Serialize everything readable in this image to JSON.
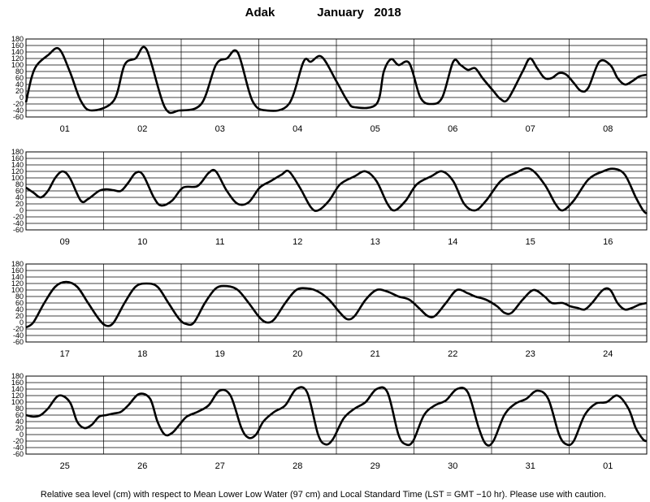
{
  "header": {
    "station": "Adak",
    "month_year": "January   2018"
  },
  "footer": {
    "note": "Relative sea level (cm) with respect to Mean Lower Low Water (97 cm) and Local Standard Time (LST = GMT −10 hr). Please use with caution."
  },
  "chart_data": {
    "type": "line",
    "title": "Adak January 2018",
    "ylim": [
      -60,
      180
    ],
    "y_ticks": [
      -60,
      -40,
      -20,
      0,
      20,
      40,
      60,
      80,
      100,
      120,
      140,
      160,
      180
    ],
    "grid": true,
    "line_color": "#000000",
    "panels": [
      {
        "days": [
          "01",
          "02",
          "03",
          "04",
          "05",
          "06",
          "07",
          "08"
        ],
        "points": [
          [
            0,
            -15
          ],
          [
            1.5,
            60
          ],
          [
            3,
            100
          ],
          [
            6,
            130
          ],
          [
            9,
            150
          ],
          [
            12,
            80
          ],
          [
            15,
            -10
          ],
          [
            18,
            -40
          ],
          [
            24,
            -10
          ],
          [
            27,
            100
          ],
          [
            30,
            120
          ],
          [
            33,
            148
          ],
          [
            38,
            -30
          ],
          [
            42,
            -40
          ],
          [
            48,
            -20
          ],
          [
            52,
            100
          ],
          [
            55,
            120
          ],
          [
            58,
            138
          ],
          [
            62,
            -10
          ],
          [
            66,
            -40
          ],
          [
            72,
            -20
          ],
          [
            76,
            110
          ],
          [
            78,
            110
          ],
          [
            81,
            125
          ],
          [
            85,
            50
          ],
          [
            88,
            -10
          ],
          [
            90,
            -30
          ],
          [
            96,
            -20
          ],
          [
            98,
            80
          ],
          [
            100,
            118
          ],
          [
            102,
            100
          ],
          [
            105,
            105
          ],
          [
            108,
            0
          ],
          [
            111,
            -20
          ],
          [
            114,
            0
          ],
          [
            117,
            110
          ],
          [
            119,
            100
          ],
          [
            121,
            85
          ],
          [
            123,
            90
          ],
          [
            125,
            60
          ],
          [
            128,
            20
          ],
          [
            130,
            -5
          ],
          [
            132,
            -5
          ],
          [
            136,
            80
          ],
          [
            138,
            120
          ],
          [
            140,
            90
          ],
          [
            142,
            60
          ],
          [
            144,
            60
          ],
          [
            146,
            75
          ],
          [
            148,
            70
          ],
          [
            150,
            45
          ],
          [
            152,
            20
          ],
          [
            154,
            30
          ],
          [
            157,
            110
          ],
          [
            160,
            100
          ],
          [
            162,
            60
          ],
          [
            164,
            40
          ],
          [
            166,
            50
          ],
          [
            168,
            65
          ],
          [
            170,
            70
          ]
        ]
      },
      {
        "days": [
          "09",
          "10",
          "11",
          "12",
          "13",
          "14",
          "15",
          "16"
        ],
        "points": [
          [
            0,
            70
          ],
          [
            2,
            55
          ],
          [
            4,
            40
          ],
          [
            6,
            60
          ],
          [
            8,
            100
          ],
          [
            10,
            120
          ],
          [
            12,
            100
          ],
          [
            15,
            30
          ],
          [
            17,
            35
          ],
          [
            20,
            60
          ],
          [
            22,
            65
          ],
          [
            24,
            62
          ],
          [
            26,
            60
          ],
          [
            28,
            85
          ],
          [
            30,
            115
          ],
          [
            32,
            110
          ],
          [
            35,
            40
          ],
          [
            37,
            15
          ],
          [
            40,
            30
          ],
          [
            43,
            70
          ],
          [
            47,
            75
          ],
          [
            50,
            115
          ],
          [
            52,
            120
          ],
          [
            55,
            60
          ],
          [
            58,
            20
          ],
          [
            61,
            25
          ],
          [
            64,
            70
          ],
          [
            67,
            90
          ],
          [
            70,
            110
          ],
          [
            72,
            120
          ],
          [
            75,
            70
          ],
          [
            78,
            10
          ],
          [
            80,
            0
          ],
          [
            83,
            30
          ],
          [
            86,
            80
          ],
          [
            90,
            105
          ],
          [
            93,
            120
          ],
          [
            96,
            90
          ],
          [
            99,
            20
          ],
          [
            101,
            0
          ],
          [
            104,
            30
          ],
          [
            107,
            80
          ],
          [
            111,
            105
          ],
          [
            114,
            120
          ],
          [
            117,
            90
          ],
          [
            120,
            20
          ],
          [
            123,
            0
          ],
          [
            126,
            30
          ],
          [
            130,
            90
          ],
          [
            134,
            115
          ],
          [
            138,
            128
          ],
          [
            142,
            80
          ],
          [
            145,
            20
          ],
          [
            147,
            0
          ],
          [
            150,
            30
          ],
          [
            154,
            95
          ],
          [
            158,
            120
          ],
          [
            161,
            128
          ],
          [
            164,
            110
          ],
          [
            167,
            40
          ],
          [
            169,
            0
          ],
          [
            170,
            -10
          ]
        ]
      },
      {
        "days": [
          "17",
          "18",
          "19",
          "20",
          "21",
          "22",
          "23",
          "24"
        ],
        "points": [
          [
            0,
            -15
          ],
          [
            2,
            0
          ],
          [
            5,
            60
          ],
          [
            8,
            110
          ],
          [
            11,
            125
          ],
          [
            14,
            110
          ],
          [
            17,
            60
          ],
          [
            20,
            10
          ],
          [
            22,
            -10
          ],
          [
            24,
            0
          ],
          [
            27,
            60
          ],
          [
            30,
            110
          ],
          [
            33,
            120
          ],
          [
            36,
            110
          ],
          [
            39,
            60
          ],
          [
            42,
            10
          ],
          [
            44,
            -5
          ],
          [
            46,
            0
          ],
          [
            49,
            60
          ],
          [
            52,
            105
          ],
          [
            55,
            112
          ],
          [
            58,
            100
          ],
          [
            61,
            60
          ],
          [
            64,
            15
          ],
          [
            66,
            0
          ],
          [
            68,
            10
          ],
          [
            71,
            60
          ],
          [
            74,
            100
          ],
          [
            77,
            105
          ],
          [
            80,
            95
          ],
          [
            83,
            70
          ],
          [
            86,
            30
          ],
          [
            88,
            10
          ],
          [
            90,
            20
          ],
          [
            93,
            70
          ],
          [
            96,
            100
          ],
          [
            99,
            95
          ],
          [
            102,
            80
          ],
          [
            105,
            70
          ],
          [
            108,
            40
          ],
          [
            110,
            20
          ],
          [
            112,
            20
          ],
          [
            115,
            60
          ],
          [
            118,
            100
          ],
          [
            121,
            90
          ],
          [
            123,
            80
          ],
          [
            126,
            70
          ],
          [
            129,
            50
          ],
          [
            131,
            30
          ],
          [
            133,
            30
          ],
          [
            136,
            70
          ],
          [
            139,
            100
          ],
          [
            142,
            80
          ],
          [
            144,
            60
          ],
          [
            147,
            60
          ],
          [
            149,
            50
          ],
          [
            151,
            45
          ],
          [
            153,
            40
          ],
          [
            155,
            60
          ],
          [
            158,
            100
          ],
          [
            160,
            100
          ],
          [
            162,
            60
          ],
          [
            164,
            40
          ],
          [
            166,
            45
          ],
          [
            168,
            55
          ],
          [
            170,
            60
          ]
        ]
      },
      {
        "days": [
          "25",
          "26",
          "27",
          "28",
          "29",
          "30",
          "31",
          "01"
        ],
        "points": [
          [
            0,
            60
          ],
          [
            2,
            55
          ],
          [
            4,
            60
          ],
          [
            6,
            80
          ],
          [
            9,
            120
          ],
          [
            12,
            100
          ],
          [
            14,
            40
          ],
          [
            16,
            20
          ],
          [
            18,
            30
          ],
          [
            20,
            55
          ],
          [
            22,
            60
          ],
          [
            24,
            65
          ],
          [
            26,
            70
          ],
          [
            28,
            90
          ],
          [
            31,
            125
          ],
          [
            34,
            110
          ],
          [
            36,
            40
          ],
          [
            38,
            0
          ],
          [
            40,
            5
          ],
          [
            42,
            30
          ],
          [
            44,
            55
          ],
          [
            47,
            70
          ],
          [
            50,
            90
          ],
          [
            53,
            135
          ],
          [
            56,
            120
          ],
          [
            59,
            20
          ],
          [
            61,
            -10
          ],
          [
            63,
            0
          ],
          [
            65,
            40
          ],
          [
            68,
            70
          ],
          [
            71,
            90
          ],
          [
            74,
            140
          ],
          [
            77,
            130
          ],
          [
            80,
            0
          ],
          [
            82,
            -30
          ],
          [
            84,
            -15
          ],
          [
            87,
            50
          ],
          [
            90,
            80
          ],
          [
            93,
            100
          ],
          [
            96,
            140
          ],
          [
            99,
            130
          ],
          [
            102,
            0
          ],
          [
            104,
            -30
          ],
          [
            106,
            -20
          ],
          [
            109,
            60
          ],
          [
            112,
            90
          ],
          [
            115,
            105
          ],
          [
            118,
            140
          ],
          [
            121,
            130
          ],
          [
            124,
            20
          ],
          [
            126,
            -30
          ],
          [
            128,
            -20
          ],
          [
            131,
            60
          ],
          [
            134,
            95
          ],
          [
            137,
            110
          ],
          [
            140,
            135
          ],
          [
            143,
            110
          ],
          [
            146,
            0
          ],
          [
            148,
            -30
          ],
          [
            150,
            -20
          ],
          [
            153,
            60
          ],
          [
            156,
            95
          ],
          [
            159,
            100
          ],
          [
            162,
            120
          ],
          [
            165,
            80
          ],
          [
            167,
            20
          ],
          [
            169,
            -15
          ],
          [
            170,
            -20
          ]
        ]
      }
    ]
  }
}
